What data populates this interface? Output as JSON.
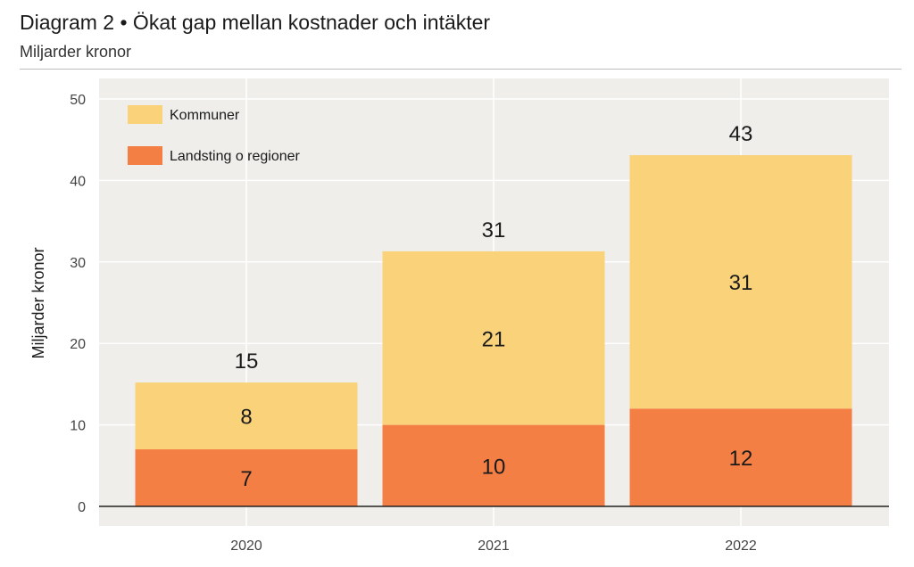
{
  "header": {
    "title": "Diagram 2 • Ökat gap mellan kostnader och intäkter",
    "subtitle": "Miljarder kronor"
  },
  "colors": {
    "plot_bg": "#efeeeb",
    "grid": "#ffffff",
    "kommuner": "#f9d27a",
    "landsting": "#f47f45",
    "axis": "#222222"
  },
  "chart_data": {
    "type": "bar",
    "stacked": true,
    "categories": [
      "2020",
      "2021",
      "2022"
    ],
    "series": [
      {
        "name": "Landsting o regioner",
        "values": [
          7,
          10,
          12
        ],
        "labels": [
          "7",
          "10",
          "12"
        ]
      },
      {
        "name": "Kommuner",
        "values": [
          8,
          21,
          31
        ],
        "labels": [
          "8",
          "21",
          "31"
        ]
      }
    ],
    "totals": [
      15,
      31,
      43
    ],
    "total_labels": [
      "15",
      "31",
      "43"
    ],
    "bar_tops": [
      15.2,
      31.3,
      43.1
    ],
    "ylabel": "Miljarder kronor",
    "ylim": [
      0,
      52
    ],
    "yticks": [
      0,
      10,
      20,
      30,
      40,
      50
    ],
    "ytick_labels": [
      "0",
      "10",
      "20",
      "30",
      "40",
      "50"
    ],
    "grid": true,
    "legend": {
      "placement": "top-left",
      "order": [
        "Kommuner",
        "Landsting o regioner"
      ]
    }
  }
}
